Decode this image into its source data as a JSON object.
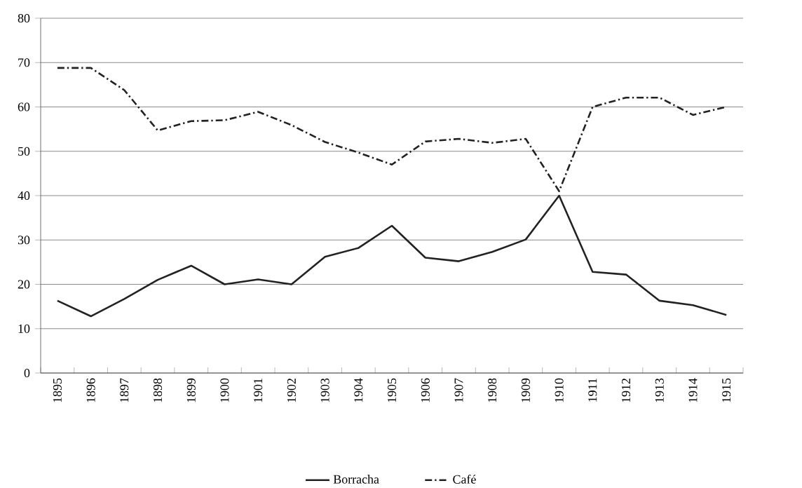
{
  "chart_data": {
    "type": "line",
    "categories": [
      "1895",
      "1896",
      "1897",
      "1898",
      "1899",
      "1900",
      "1901",
      "1902",
      "1903",
      "1904",
      "1905",
      "1906",
      "1907",
      "1908",
      "1909",
      "1910",
      "1911",
      "1912",
      "1913",
      "1914",
      "1915"
    ],
    "series": [
      {
        "name": "Borracha",
        "color": "#222222",
        "line_style": "solid",
        "values": [
          16.3,
          12.8,
          16.7,
          21,
          24.2,
          20,
          21.1,
          20,
          26.2,
          28.2,
          33.2,
          26,
          25.2,
          27.3,
          30.1,
          40,
          22.8,
          22.2,
          16.3,
          15.3,
          13.1
        ]
      },
      {
        "name": "Café",
        "color": "#222222",
        "line_style": "dashdot",
        "values": [
          68.8,
          68.8,
          63.8,
          54.7,
          56.8,
          57,
          58.9,
          55.9,
          52.1,
          49.7,
          47,
          52.2,
          52.8,
          51.9,
          52.8,
          41,
          60,
          62.1,
          62.1,
          58.2,
          60
        ]
      }
    ],
    "ylim": [
      0,
      80
    ],
    "yticks": [
      0,
      10,
      20,
      30,
      40,
      50,
      60,
      70,
      80
    ],
    "grid": "y",
    "legend": "bottom",
    "marker": "none"
  }
}
